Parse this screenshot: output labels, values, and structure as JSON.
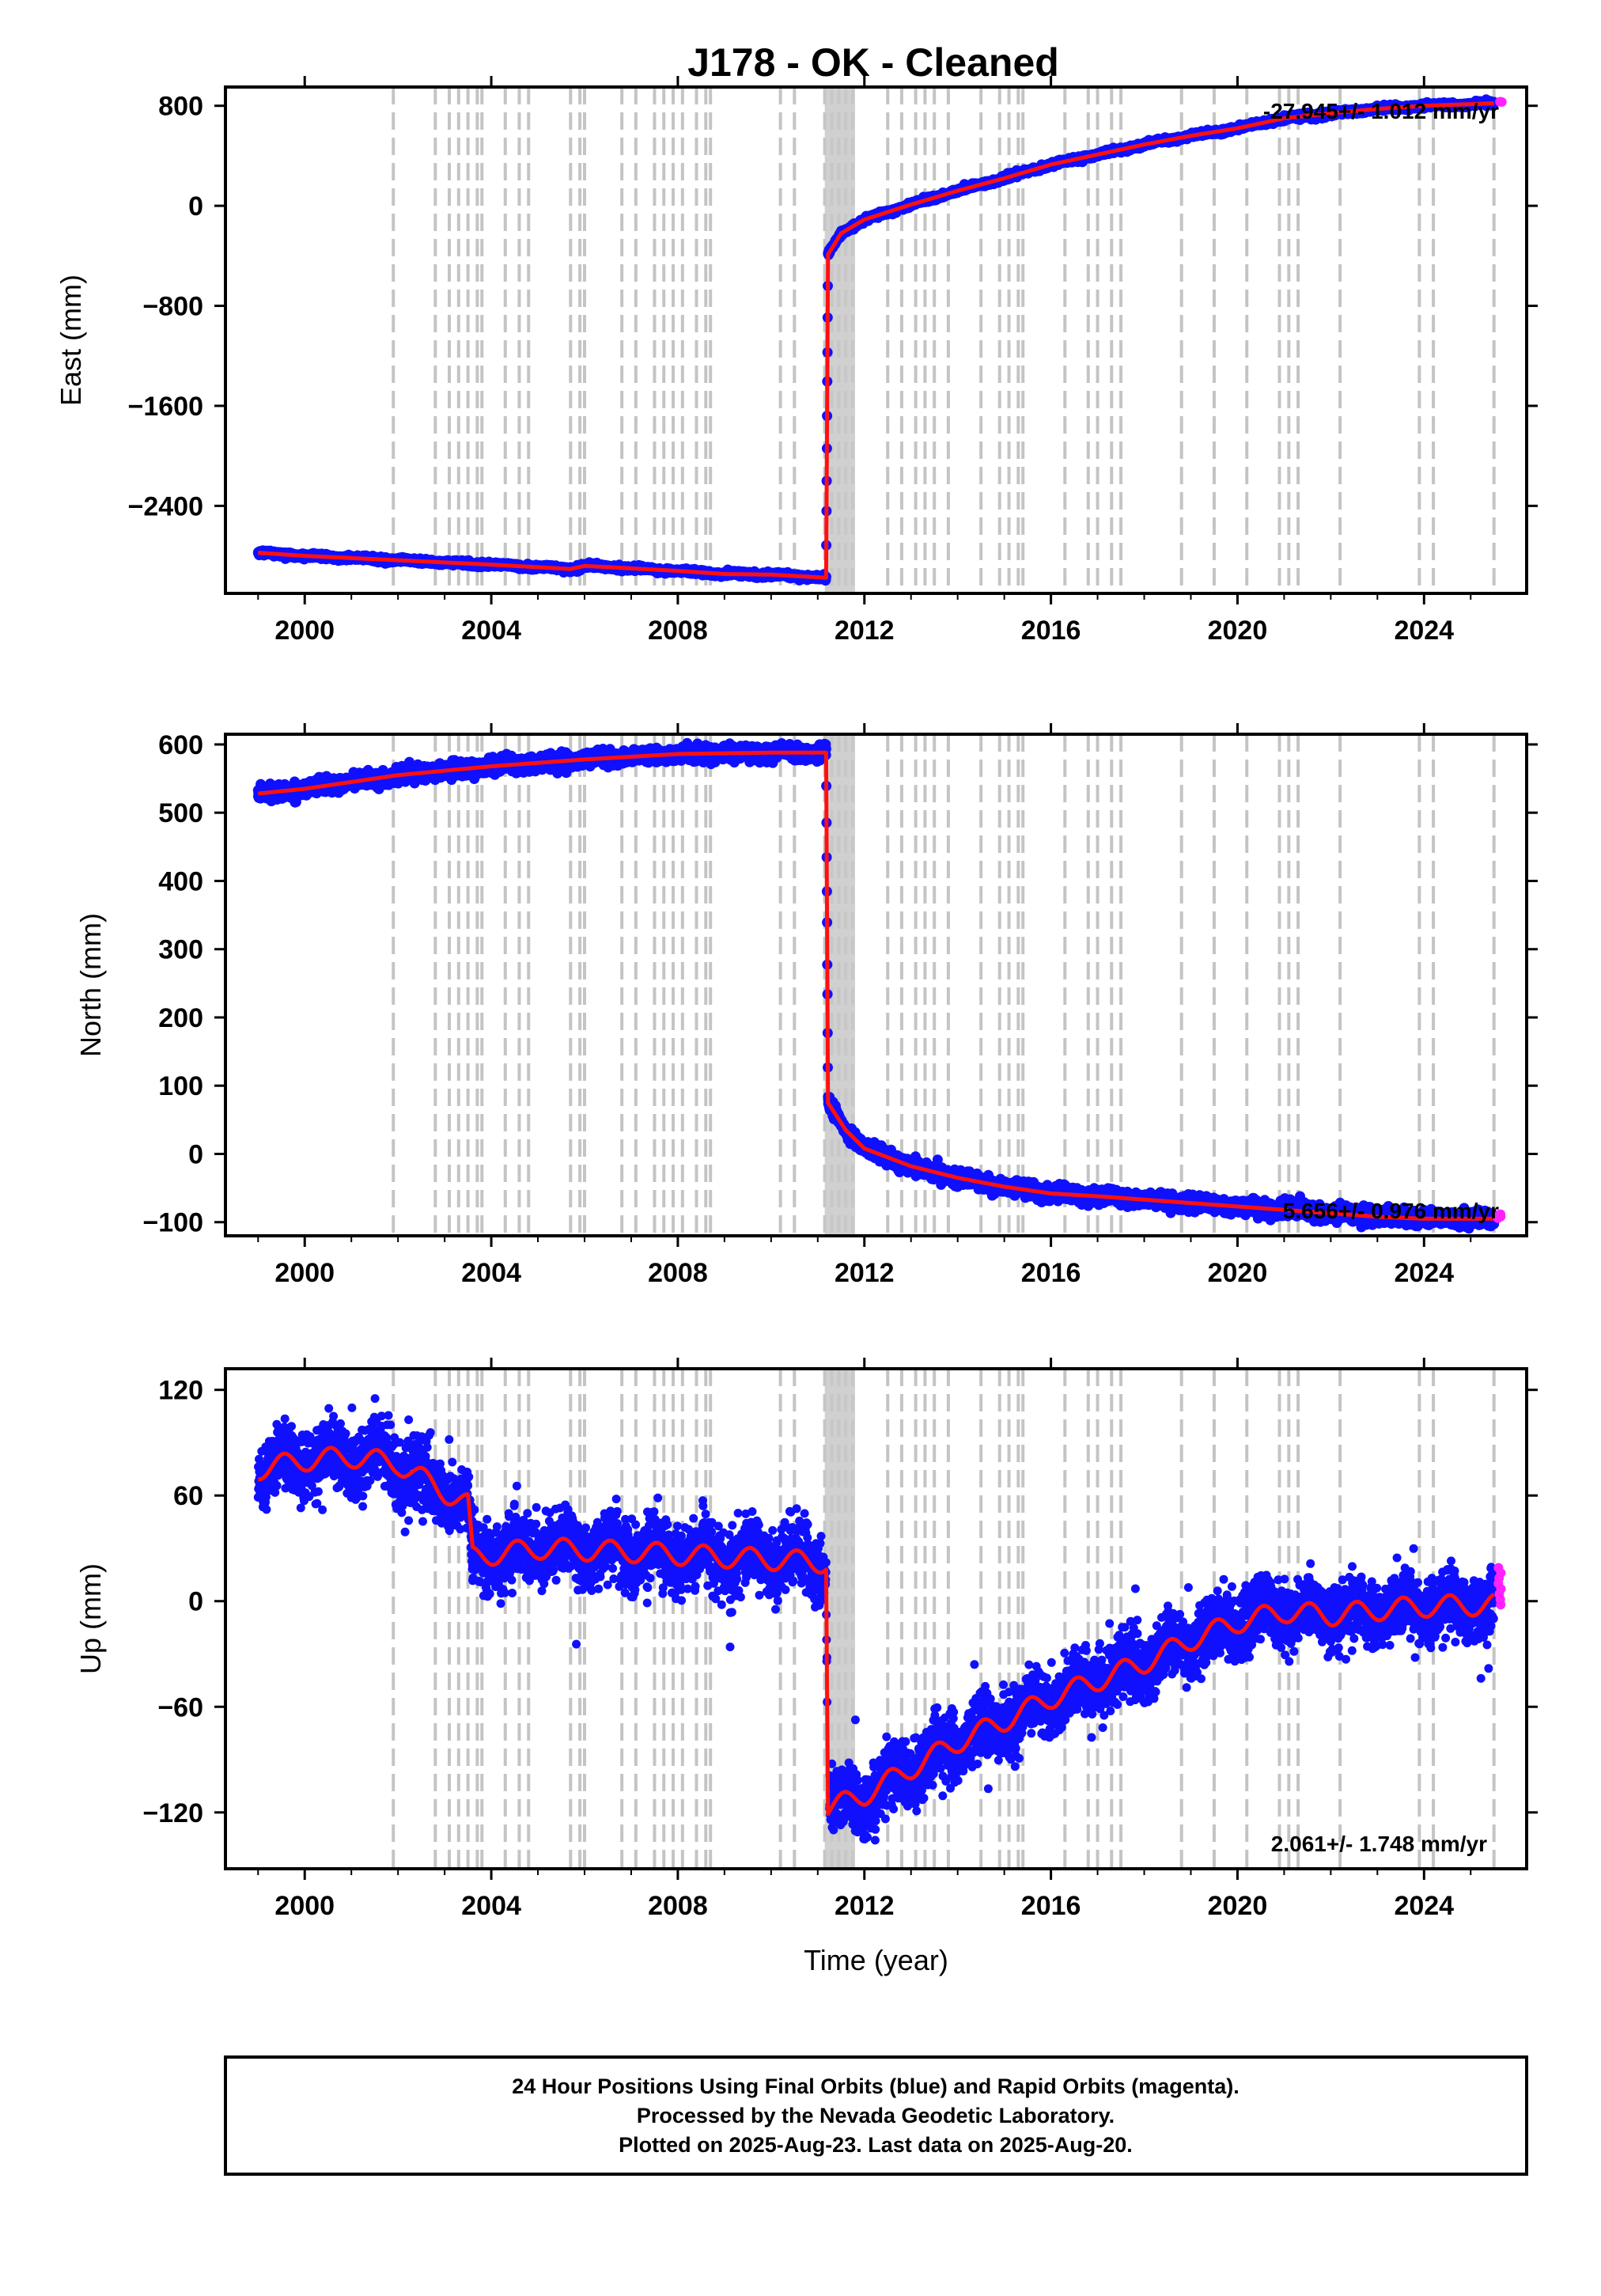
{
  "title": "J178  - OK - Cleaned",
  "chart_data": [
    {
      "type": "scatter",
      "ylabel": "East (mm)",
      "xlabel": "",
      "xlim": [
        1998.3,
        2026.2
      ],
      "ylim": [
        -3100,
        950
      ],
      "yticks": [
        -2400,
        -1600,
        -800,
        0,
        800
      ],
      "ytick_labels": [
        "−2400",
        "−1600",
        "−800",
        "0",
        "800"
      ],
      "xticks": [
        2000,
        2004,
        2008,
        2012,
        2016,
        2020,
        2024
      ],
      "xtick_labels": [
        "2000",
        "2004",
        "2008",
        "2012",
        "2016",
        "2020",
        "2024"
      ],
      "rate_label": "-27.945+/- 1.012 mm/yr",
      "series": [
        {
          "color": "#1010ff",
          "points": [
            [
              1999.0,
              -2775
            ],
            [
              2000.0,
              -2800
            ],
            [
              2002.0,
              -2835
            ],
            [
              2004.0,
              -2870
            ],
            [
              2005.7,
              -2905
            ],
            [
              2006.0,
              -2880
            ],
            [
              2008.0,
              -2920
            ],
            [
              2009.0,
              -2945
            ],
            [
              2010.0,
              -2950
            ],
            [
              2011.18,
              -2975
            ],
            [
              2011.22,
              -390
            ],
            [
              2011.5,
              -220
            ],
            [
              2012.0,
              -110
            ],
            [
              2013.0,
              10
            ],
            [
              2014.0,
              120
            ],
            [
              2015.0,
              220
            ],
            [
              2016.0,
              330
            ],
            [
              2017.0,
              410
            ],
            [
              2018.0,
              490
            ],
            [
              2019.0,
              560
            ],
            [
              2020.0,
              620
            ],
            [
              2021.0,
              700
            ],
            [
              2022.0,
              740
            ],
            [
              2023.0,
              775
            ],
            [
              2024.0,
              800
            ],
            [
              2025.5,
              820
            ]
          ]
        },
        {
          "color": "#ff22ff",
          "points": [
            [
              2025.62,
              830
            ]
          ]
        }
      ]
    },
    {
      "type": "scatter",
      "ylabel": "North (mm)",
      "xlabel": "",
      "xlim": [
        1998.3,
        2026.2
      ],
      "ylim": [
        -120,
        615
      ],
      "yticks": [
        -100,
        0,
        100,
        200,
        300,
        400,
        500,
        600
      ],
      "ytick_labels": [
        "−100",
        "0",
        "100",
        "200",
        "300",
        "400",
        "500",
        "600"
      ],
      "xticks": [
        2000,
        2004,
        2008,
        2012,
        2016,
        2020,
        2024
      ],
      "xtick_labels": [
        "2000",
        "2004",
        "2008",
        "2012",
        "2016",
        "2020",
        "2024"
      ],
      "rate_label": "5.656+/- 0.976 mm/yr",
      "series": [
        {
          "color": "#1010ff",
          "points": [
            [
              1999.0,
              528
            ],
            [
              2000.0,
              535
            ],
            [
              2002.0,
              555
            ],
            [
              2004.0,
              568
            ],
            [
              2006.0,
              578
            ],
            [
              2008.0,
              586
            ],
            [
              2010.0,
              588
            ],
            [
              2011.18,
              588
            ],
            [
              2011.22,
              75
            ],
            [
              2011.6,
              35
            ],
            [
              2012.0,
              8
            ],
            [
              2013.0,
              -18
            ],
            [
              2014.0,
              -35
            ],
            [
              2015.0,
              -48
            ],
            [
              2016.0,
              -58
            ],
            [
              2017.0,
              -62
            ],
            [
              2018.0,
              -67
            ],
            [
              2019.0,
              -72
            ],
            [
              2020.0,
              -77
            ],
            [
              2021.0,
              -82
            ],
            [
              2022.0,
              -87
            ],
            [
              2023.0,
              -92
            ],
            [
              2024.0,
              -95
            ],
            [
              2025.5,
              -95
            ]
          ]
        },
        {
          "color": "#ff22ff",
          "points": [
            [
              2025.62,
              -92
            ]
          ]
        }
      ]
    },
    {
      "type": "scatter",
      "ylabel": "Up (mm)",
      "xlabel": "Time (year)",
      "xlim": [
        1998.3,
        2026.2
      ],
      "ylim": [
        -152,
        132
      ],
      "yticks": [
        -120,
        -60,
        0,
        60,
        120
      ],
      "ytick_labels": [
        "−120",
        "−60",
        "0",
        "60",
        "120"
      ],
      "xticks": [
        2000,
        2004,
        2008,
        2012,
        2016,
        2020,
        2024
      ],
      "xtick_labels": [
        "2000",
        "2004",
        "2008",
        "2012",
        "2016",
        "2020",
        "2024"
      ],
      "rate_label": "2.061+/- 1.748 mm/yr",
      "series": [
        {
          "color": "#1010ff",
          "points": [
            [
              1999.0,
              75
            ],
            [
              2000.0,
              80
            ],
            [
              2001.0,
              82
            ],
            [
              2002.0,
              78
            ],
            [
              2003.0,
              62
            ],
            [
              2003.5,
              55
            ],
            [
              2003.6,
              25
            ],
            [
              2005.0,
              30
            ],
            [
              2007.0,
              28
            ],
            [
              2009.0,
              25
            ],
            [
              2011.18,
              22
            ],
            [
              2011.22,
              -118
            ],
            [
              2012.0,
              -110
            ],
            [
              2013.0,
              -95
            ],
            [
              2014.0,
              -80
            ],
            [
              2015.0,
              -68
            ],
            [
              2016.0,
              -55
            ],
            [
              2017.0,
              -45
            ],
            [
              2018.0,
              -35
            ],
            [
              2019.0,
              -22
            ],
            [
              2020.0,
              -12
            ],
            [
              2021.0,
              -6
            ],
            [
              2022.0,
              -8
            ],
            [
              2023.0,
              -5
            ],
            [
              2024.0,
              -3
            ],
            [
              2025.5,
              -2
            ]
          ]
        },
        {
          "color": "#ff22ff",
          "points": [
            [
              2025.62,
              10
            ]
          ]
        }
      ]
    }
  ],
  "footer": {
    "line1": "24 Hour Positions Using Final Orbits (blue) and Rapid Orbits (magenta).",
    "line2": "Processed by the Nevada Geodetic Laboratory.",
    "line3": "Plotted on 2025-Aug-23. Last data on 2025-Aug-20."
  },
  "colors": {
    "final_orbits": "#1010ff",
    "rapid_orbits": "#ff22ff",
    "model_fit": "#ff1010",
    "event_lines": "#c4c4c4"
  },
  "event_lines": [
    2001.9,
    2002.8,
    2003.1,
    2003.3,
    2003.5,
    2003.7,
    2003.8,
    2004.3,
    2004.6,
    2004.8,
    2005.7,
    2005.9,
    2006.0,
    2006.8,
    2007.1,
    2007.5,
    2007.7,
    2007.9,
    2008.1,
    2008.4,
    2008.6,
    2008.7,
    2010.2,
    2010.5,
    2011.15,
    2011.3,
    2011.45,
    2011.6,
    2011.75,
    2012.5,
    2012.8,
    2013.1,
    2013.3,
    2013.5,
    2013.8,
    2014.5,
    2014.9,
    2015.1,
    2015.3,
    2015.4,
    2016.3,
    2016.8,
    2017.0,
    2017.3,
    2017.5,
    2018.8,
    2019.5,
    2020.2,
    2020.9,
    2021.1,
    2021.3,
    2022.2,
    2023.9,
    2024.2,
    2025.5
  ]
}
